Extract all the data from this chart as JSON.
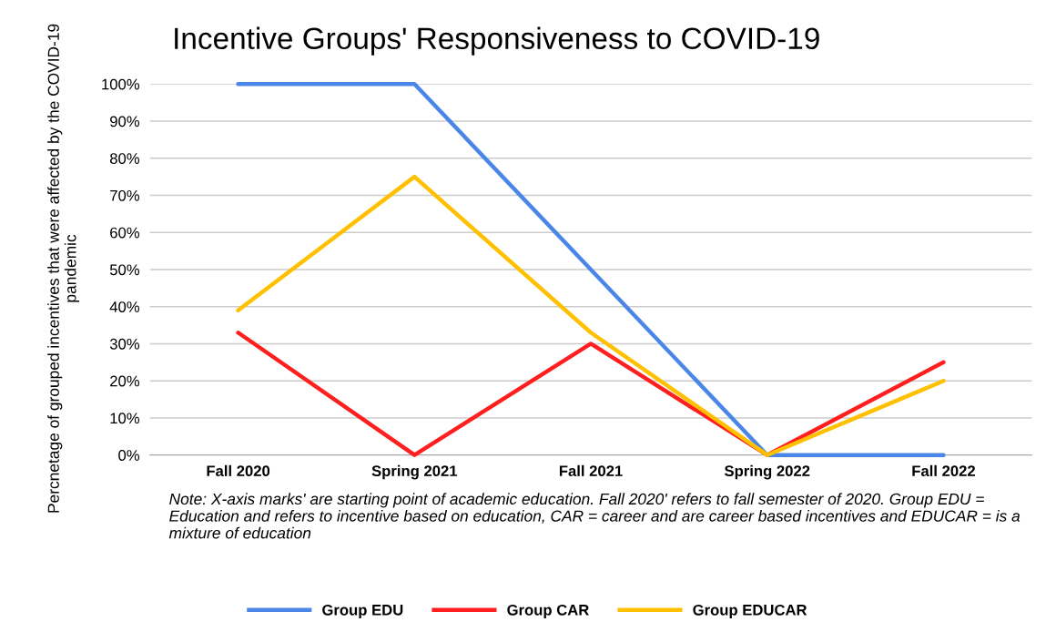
{
  "chart_data": {
    "type": "line",
    "title": "Incentive Groups' Responsiveness to COVID-19",
    "ylabel": "Percnetage of grouped incentives that were affected by the COVID-19 pandemic",
    "categories": [
      "Fall 2020",
      "Spring 2021",
      "Fall 2021",
      "Spring 2022",
      "Fall 2022"
    ],
    "series": [
      {
        "name": "Group EDU",
        "color": "#4a86e8",
        "values": [
          100,
          100,
          50,
          0,
          0
        ]
      },
      {
        "name": "Group CAR",
        "color": "#ff1f1f",
        "values": [
          33,
          0,
          30,
          0,
          25
        ]
      },
      {
        "name": "Group EDUCAR",
        "color": "#ffc000",
        "values": [
          39,
          75,
          33,
          0,
          20
        ]
      }
    ],
    "ylim": [
      0,
      100
    ],
    "yticks": [
      {
        "value": 0,
        "label": "0%"
      },
      {
        "value": 10,
        "label": "10%"
      },
      {
        "value": 20,
        "label": "20%"
      },
      {
        "value": 30,
        "label": "30%"
      },
      {
        "value": 40,
        "label": "40%"
      },
      {
        "value": 50,
        "label": "50%"
      },
      {
        "value": 60,
        "label": "60%"
      },
      {
        "value": 70,
        "label": "70%"
      },
      {
        "value": 80,
        "label": "80%"
      },
      {
        "value": 90,
        "label": "90%"
      },
      {
        "value": 100,
        "label": "100%"
      }
    ],
    "grid": "y",
    "legend": "bottom",
    "marker": "none",
    "line_style": "solid",
    "annotations": [
      "Note: X-axis marks' are starting point of academic education. Fall 2020' refers to fall semester of 2020. Group EDU = Education and refers to incentive based on education, CAR = career and are career based incentives and EDUCAR = is a mixture of education"
    ]
  }
}
